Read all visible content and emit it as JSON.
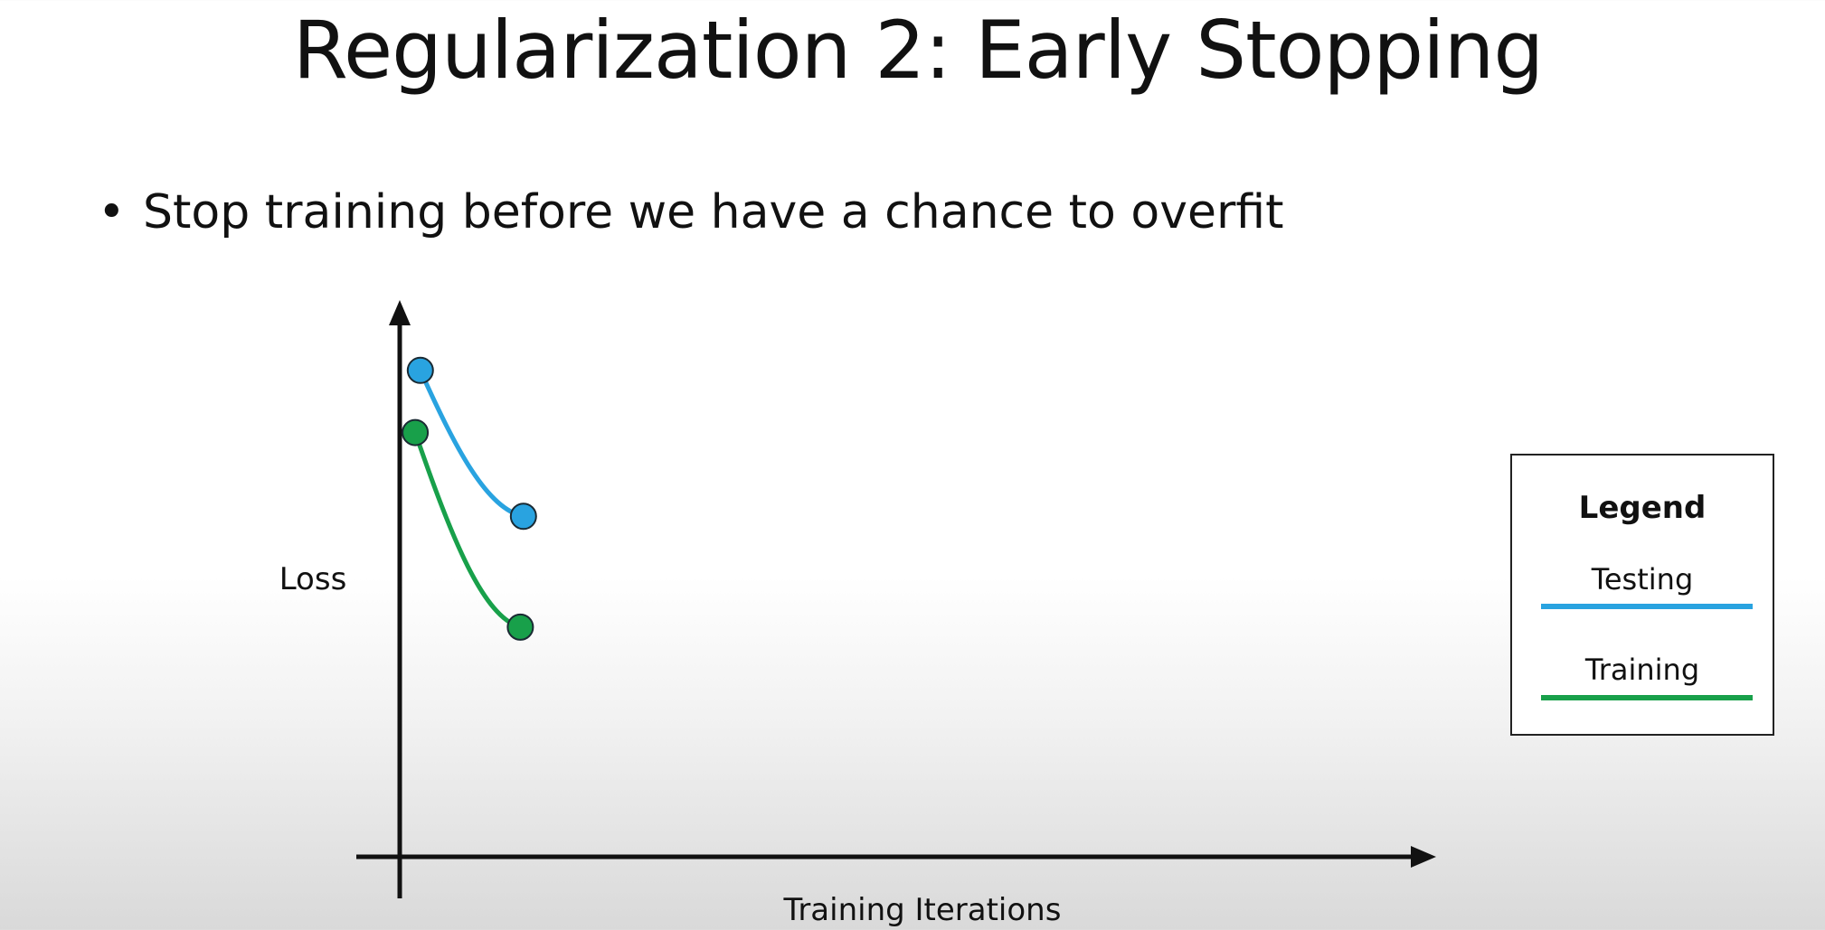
{
  "slide": {
    "title": "Regularization 2: Early Stopping",
    "bullet_symbol": "•",
    "bullet_text": "Stop training before we have a chance to overfit"
  },
  "chart_data": {
    "type": "line",
    "title": "",
    "xlabel": "Training Iterations",
    "ylabel": "Loss",
    "x_ticks": "none",
    "y_ticks": "none",
    "xlim": [
      0,
      10
    ],
    "ylim": [
      0,
      10
    ],
    "grid": false,
    "legend_position": "right",
    "legend_title": "Legend",
    "series": [
      {
        "name": "Testing",
        "color": "#29a3e0",
        "x": [
          0.2,
          1.2
        ],
        "y": [
          9.0,
          6.3
        ]
      },
      {
        "name": "Training",
        "color": "#18a04a",
        "x": [
          0.15,
          1.17
        ],
        "y": [
          7.85,
          4.25
        ]
      }
    ]
  }
}
